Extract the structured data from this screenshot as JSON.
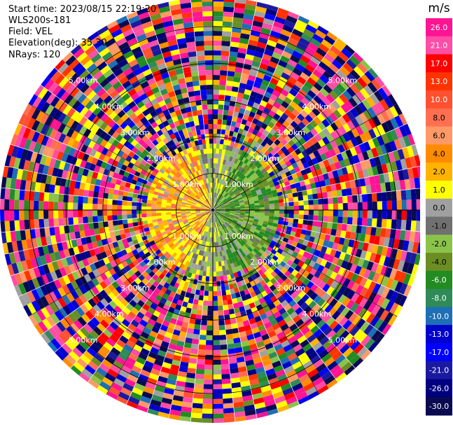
{
  "info": {
    "start_time": "Start time: 2023/08/15 22:19:20",
    "instrument": "WLS200s-181",
    "field": "Field: VEL",
    "elevation": "Elevation(deg): 35.30",
    "nrays": "NRays: 120"
  },
  "chart_data": {
    "type": "heatmap",
    "projection": "polar-ppi",
    "field": "VEL",
    "nrays": 120,
    "ring_labels": [
      "1.00km",
      "2.00km",
      "3.00km",
      "4.00km",
      "5.00km"
    ],
    "range_max_km": 5.8,
    "colorbar": {
      "unit": "m/s",
      "ticks": [
        "26.0",
        "21.0",
        "17.0",
        "13.0",
        "10.0",
        "8.0",
        "6.0",
        "4.0",
        "2.0",
        "1.0",
        "0.0",
        "-1.0",
        "-2.0",
        "-4.0",
        "-6.0",
        "-8.0",
        "-10.0",
        "-13.0",
        "-17.0",
        "-21.0",
        "-26.0",
        "-30.0"
      ],
      "colors": [
        "#ff1493",
        "#ff4da6",
        "#ff0000",
        "#ff3300",
        "#ff5030",
        "#ff6f50",
        "#ff9966",
        "#ff8c00",
        "#ffb300",
        "#ffff00",
        "#a0a0a0",
        "#707070",
        "#8bc34a",
        "#6b8e23",
        "#228b22",
        "#2e8b57",
        "#1e6fb5",
        "#0000cd",
        "#0000ff",
        "#1a1aa0",
        "#000080",
        "#0a0a50"
      ]
    }
  }
}
